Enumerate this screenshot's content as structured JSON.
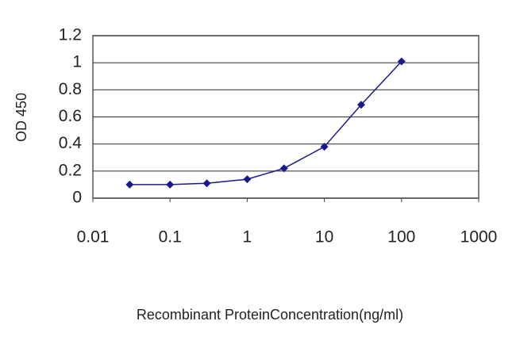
{
  "chart_data": {
    "type": "line",
    "x_label": "Recombinant ProteinConcentration(ng/ml)",
    "y_label": "OD 450",
    "x": [
      0.03,
      0.1,
      0.3,
      1,
      3,
      10,
      30,
      100
    ],
    "series": [
      {
        "color": "#1a1a8c",
        "values": [
          0.1,
          0.1,
          0.11,
          0.14,
          0.22,
          0.38,
          0.69,
          1.01
        ]
      }
    ],
    "xlim": [
      0.01,
      1000
    ],
    "xticks": [
      0.01,
      0.1,
      1,
      10,
      100,
      1000
    ],
    "xscale": "log",
    "ylim": [
      0,
      1.2
    ],
    "yticks": [
      0,
      0.2,
      0.4,
      0.6,
      0.8,
      1,
      1.2
    ],
    "grid": true
  }
}
